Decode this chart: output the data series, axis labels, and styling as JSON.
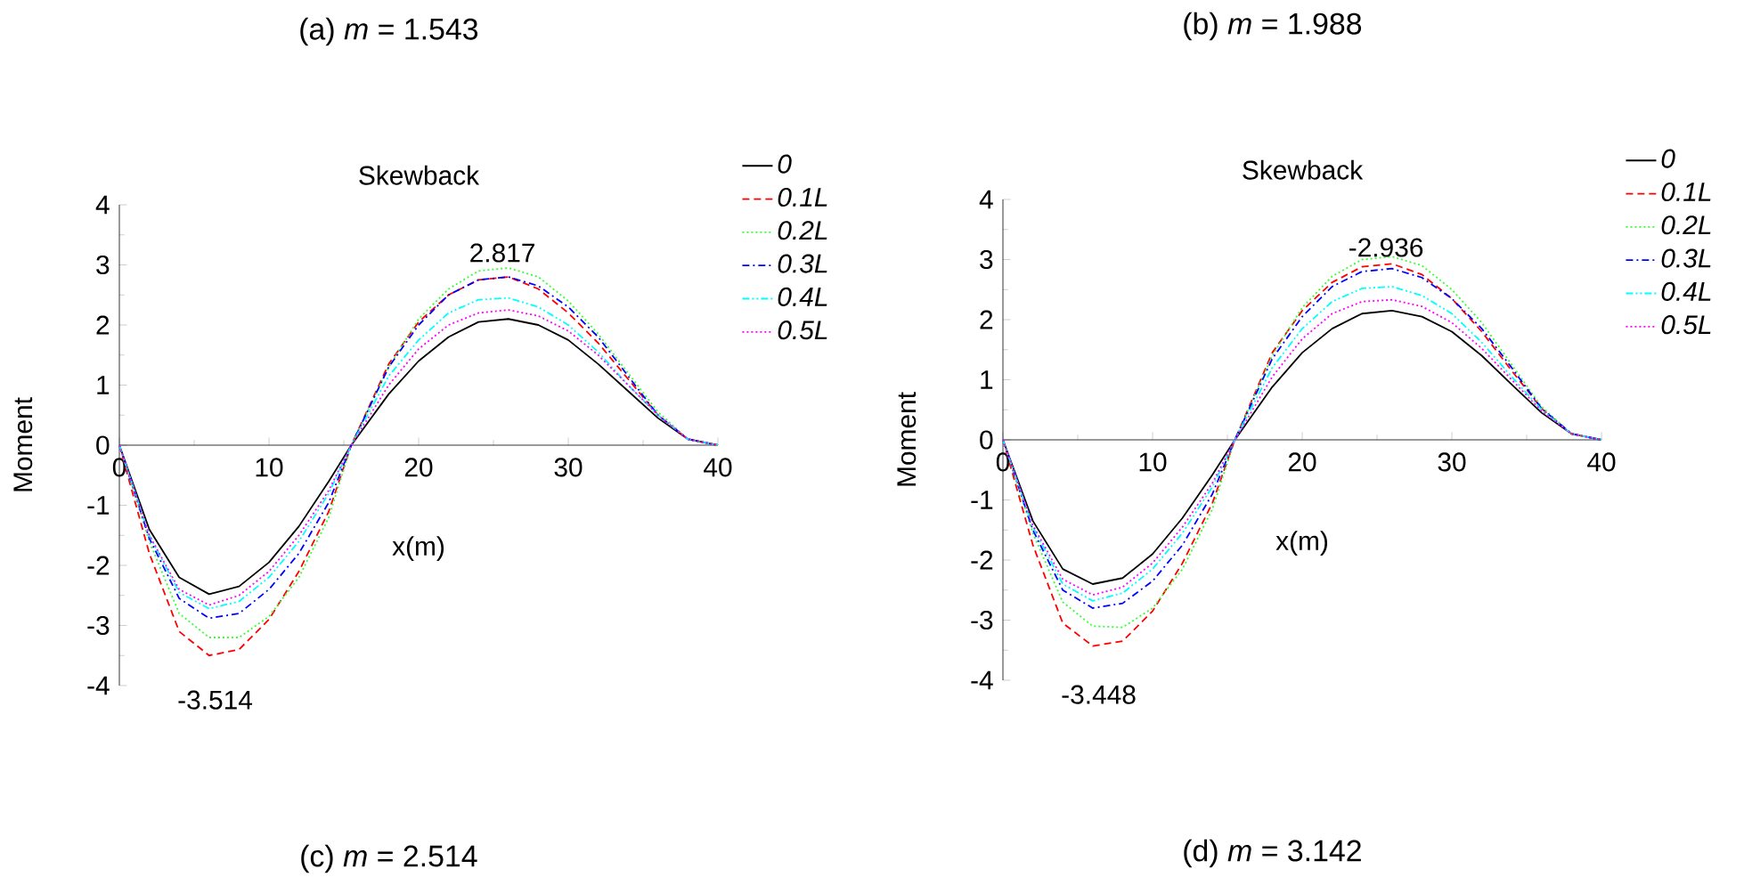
{
  "chart_data": [
    {
      "type": "line",
      "title": "(a) *m* = 1.543",
      "subtitle": "Skewback",
      "xlabel": "x(m)",
      "ylabel": "Moment",
      "xlim": [
        0,
        40
      ],
      "ylim": [
        -4,
        4
      ],
      "xticks": [
        0,
        10,
        20,
        30,
        40
      ],
      "yticks": [
        -4,
        -3,
        -2,
        -1,
        0,
        1,
        2,
        3,
        4
      ],
      "legend": "top right",
      "x": [
        0,
        2,
        4,
        6,
        8,
        10,
        12,
        14,
        15.5,
        18,
        20,
        22,
        24,
        26,
        28,
        30,
        32,
        34,
        36,
        38,
        40
      ],
      "series": [
        {
          "name": "0",
          "color": "#000000",
          "line_style": "solid",
          "values": [
            0,
            -1.4,
            -2.2,
            -2.48,
            -2.35,
            -1.95,
            -1.35,
            -0.6,
            0,
            0.85,
            1.4,
            1.8,
            2.05,
            2.1,
            2.0,
            1.75,
            1.35,
            0.9,
            0.45,
            0.1,
            0
          ]
        },
        {
          "name": "0.1L",
          "color": "#ff0000",
          "line_style": "dashed",
          "values": [
            0,
            -1.8,
            -3.1,
            -3.5,
            -3.4,
            -2.9,
            -2.1,
            -1.1,
            0,
            1.35,
            2.05,
            2.5,
            2.75,
            2.8,
            2.6,
            2.2,
            1.7,
            1.1,
            0.5,
            0.1,
            0
          ]
        },
        {
          "name": "0.2L",
          "color": "#33ff33",
          "line_style": "dotted",
          "values": [
            0,
            -1.6,
            -2.8,
            -3.2,
            -3.2,
            -2.85,
            -2.2,
            -1.2,
            0,
            1.3,
            2.1,
            2.6,
            2.9,
            2.95,
            2.8,
            2.4,
            1.85,
            1.2,
            0.55,
            0.1,
            0
          ]
        },
        {
          "name": "0.3L",
          "color": "#0000ff",
          "line_style": "dashdot",
          "values": [
            0,
            -1.55,
            -2.55,
            -2.88,
            -2.8,
            -2.4,
            -1.8,
            -0.95,
            0,
            1.3,
            2.0,
            2.5,
            2.75,
            2.8,
            2.65,
            2.3,
            1.8,
            1.15,
            0.5,
            0.1,
            0
          ]
        },
        {
          "name": "0.4L",
          "color": "#00ffff",
          "line_style": "dashdotdot",
          "values": [
            0,
            -1.5,
            -2.45,
            -2.72,
            -2.6,
            -2.2,
            -1.6,
            -0.8,
            0,
            1.15,
            1.75,
            2.2,
            2.42,
            2.45,
            2.3,
            2.0,
            1.55,
            1.0,
            0.5,
            0.1,
            0
          ]
        },
        {
          "name": "0.5L",
          "color": "#ff00ff",
          "line_style": "dotted",
          "values": [
            0,
            -1.5,
            -2.4,
            -2.66,
            -2.5,
            -2.1,
            -1.5,
            -0.75,
            0,
            1.0,
            1.6,
            2.0,
            2.2,
            2.25,
            2.15,
            1.9,
            1.5,
            1.0,
            0.5,
            0.1,
            0
          ]
        }
      ],
      "annotations": [
        "2.817",
        "-3.514",
        "(c) *m* = 2.514"
      ]
    },
    {
      "type": "line",
      "title": "(b) *m* = 1.988",
      "subtitle": "Skewback",
      "xlabel": "x(m)",
      "ylabel": "Moment",
      "xlim": [
        0,
        40
      ],
      "ylim": [
        -4,
        4
      ],
      "xticks": [
        0,
        10,
        20,
        30,
        40
      ],
      "yticks": [
        -4,
        -3,
        -2,
        -1,
        0,
        1,
        2,
        3,
        4
      ],
      "legend": "top right",
      "x": [
        0,
        2,
        4,
        6,
        8,
        10,
        12,
        14,
        15.5,
        18,
        20,
        22,
        24,
        26,
        28,
        30,
        32,
        34,
        36,
        38,
        40
      ],
      "series": [
        {
          "name": "0",
          "color": "#000000",
          "line_style": "solid",
          "values": [
            0,
            -1.35,
            -2.15,
            -2.4,
            -2.3,
            -1.9,
            -1.3,
            -0.58,
            0,
            0.88,
            1.45,
            1.85,
            2.1,
            2.15,
            2.05,
            1.8,
            1.4,
            0.92,
            0.45,
            0.1,
            0
          ]
        },
        {
          "name": "0.1L",
          "color": "#ff0000",
          "line_style": "dashed",
          "values": [
            0,
            -1.75,
            -3.05,
            -3.43,
            -3.35,
            -2.85,
            -2.05,
            -1.05,
            0,
            1.45,
            2.15,
            2.62,
            2.88,
            2.93,
            2.75,
            2.35,
            1.8,
            1.15,
            0.52,
            0.1,
            0
          ]
        },
        {
          "name": "0.2L",
          "color": "#33ff33",
          "line_style": "dotted",
          "values": [
            0,
            -1.55,
            -2.7,
            -3.1,
            -3.12,
            -2.8,
            -2.15,
            -1.15,
            0,
            1.4,
            2.2,
            2.72,
            3.0,
            3.05,
            2.9,
            2.5,
            1.95,
            1.25,
            0.55,
            0.1,
            0
          ]
        },
        {
          "name": "0.3L",
          "color": "#0000ff",
          "line_style": "dashdot",
          "values": [
            0,
            -1.5,
            -2.5,
            -2.8,
            -2.72,
            -2.35,
            -1.75,
            -0.9,
            0,
            1.35,
            2.05,
            2.55,
            2.8,
            2.85,
            2.7,
            2.35,
            1.85,
            1.2,
            0.52,
            0.1,
            0
          ]
        },
        {
          "name": "0.4L",
          "color": "#00ffff",
          "line_style": "dashdotdot",
          "values": [
            0,
            -1.45,
            -2.4,
            -2.68,
            -2.55,
            -2.15,
            -1.55,
            -0.78,
            0,
            1.2,
            1.85,
            2.3,
            2.52,
            2.55,
            2.4,
            2.1,
            1.62,
            1.05,
            0.5,
            0.1,
            0
          ]
        },
        {
          "name": "0.5L",
          "color": "#ff00ff",
          "line_style": "dotted",
          "values": [
            0,
            -1.42,
            -2.32,
            -2.58,
            -2.45,
            -2.05,
            -1.45,
            -0.72,
            0,
            1.05,
            1.68,
            2.1,
            2.3,
            2.33,
            2.22,
            1.95,
            1.52,
            1.0,
            0.48,
            0.1,
            0
          ]
        }
      ],
      "annotations": [
        "-2.936",
        "-3.448",
        "(d) *m* = 3.142"
      ]
    }
  ]
}
